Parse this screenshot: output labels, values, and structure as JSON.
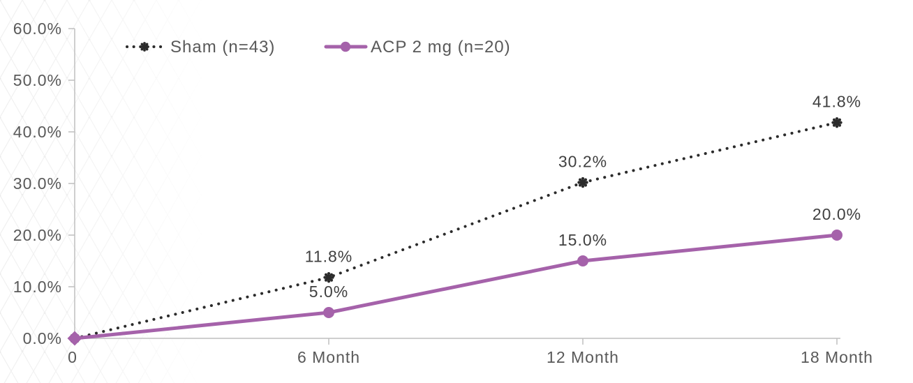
{
  "chart_data": {
    "type": "line",
    "title": "",
    "categories": [
      "0",
      "6 Month",
      "12 Month",
      "18 Month"
    ],
    "series": [
      {
        "name": "Sham (n=43)",
        "values": [
          0,
          11.8,
          30.2,
          41.8
        ],
        "data_labels": [
          "",
          "11.8%",
          "30.2%",
          "41.8%"
        ],
        "color": "#2b2b2b",
        "line_style": "dotted",
        "marker": "flower"
      },
      {
        "name": "ACP 2 mg (n=20)",
        "values": [
          0,
          5,
          15,
          20
        ],
        "data_labels": [
          "",
          "5.0%",
          "15.0%",
          "20.0%"
        ],
        "color": "#a562aa",
        "line_style": "solid",
        "marker": "circle",
        "markers": [
          "diamond",
          "circle",
          "circle",
          "circle"
        ]
      }
    ],
    "x_axis": {
      "tick_labels": [
        "0",
        "6 Month",
        "12 Month",
        "18 Month"
      ]
    },
    "y_axis": {
      "min": 0,
      "max": 60,
      "step": 10,
      "tick_labels": [
        "0.0%",
        "10.0%",
        "20.0%",
        "30.0%",
        "40.0%",
        "50.0%",
        "60.0%"
      ]
    },
    "legend": {
      "position": "top-inside",
      "entries": [
        "Sham (n=43)",
        "ACP 2 mg (n=20)"
      ]
    },
    "grid": false,
    "ylim": [
      0,
      60
    ],
    "colors": {
      "axis": "#bfbfbf",
      "tick_label": "#595959",
      "data_label": "#404040",
      "sham": "#2b2b2b",
      "acp": "#a562aa",
      "background": "#ffffff"
    }
  }
}
